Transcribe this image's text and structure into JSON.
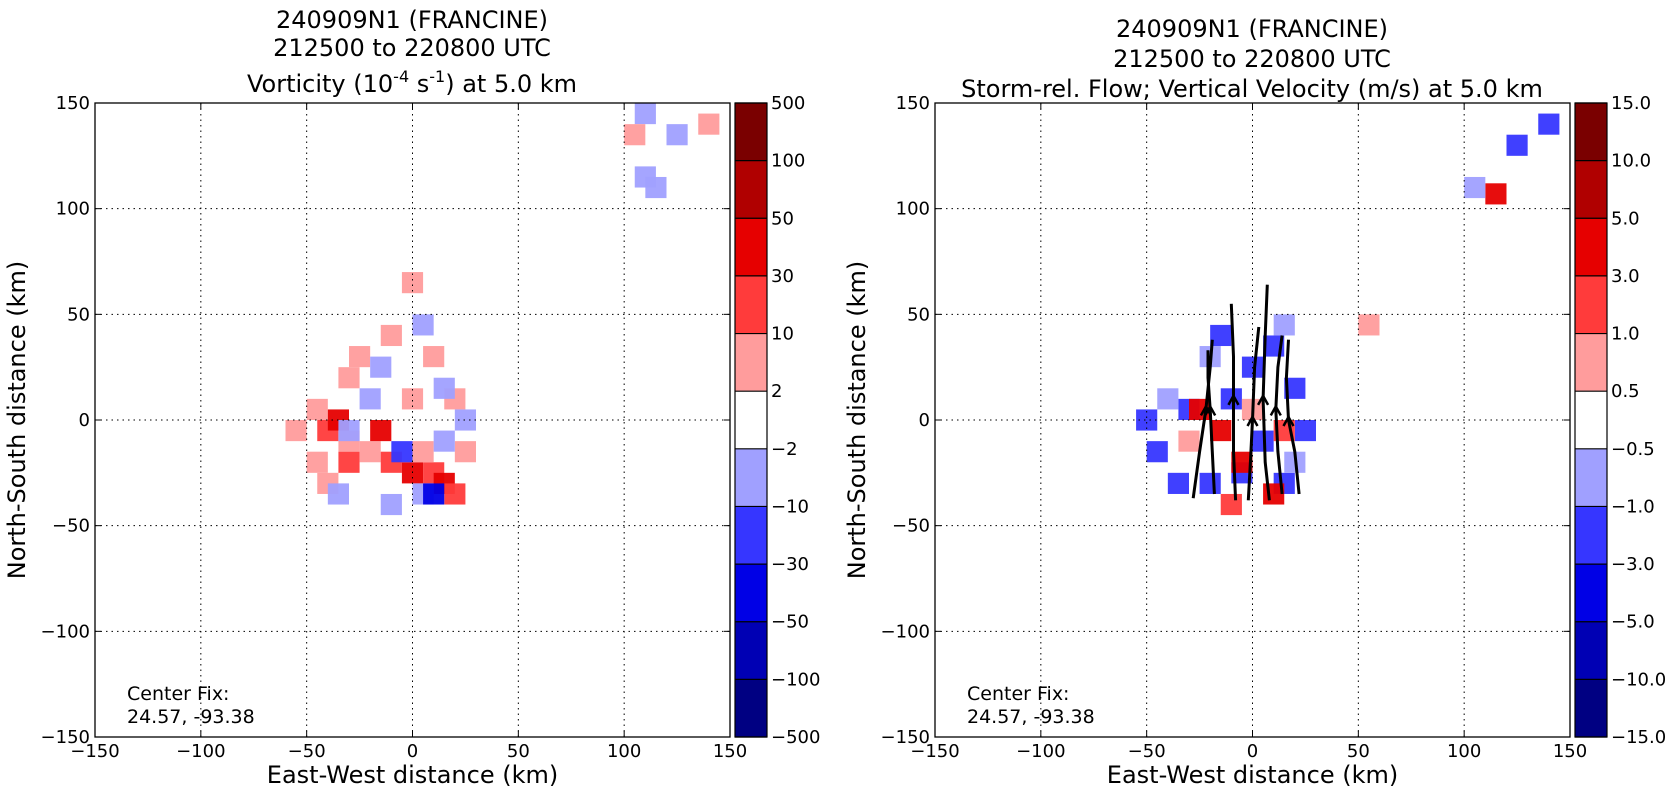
{
  "chart_data": [
    {
      "type": "heatmap",
      "title_lines": [
        "240909N1 (FRANCINE)",
        "212500 to 220800 UTC"
      ],
      "title_line3": {
        "prefix": "Vorticity (10",
        "exp1": "-4",
        "mid": " s",
        "exp2": "-1",
        "suffix": ") at 5.0 km"
      },
      "xlabel": "East-West distance (km)",
      "ylabel": "North-South distance (km)",
      "xlim": [
        -150,
        150
      ],
      "ylim": [
        -150,
        150
      ],
      "xticks": [
        -150,
        -100,
        -50,
        0,
        50,
        100,
        150
      ],
      "yticks": [
        -150,
        -100,
        -50,
        0,
        50,
        100,
        150
      ],
      "xtick_labels": [
        "−150",
        "−100",
        "−50",
        "0",
        "50",
        "100",
        "150"
      ],
      "ytick_labels": [
        "−150",
        "−100",
        "−50",
        "0",
        "50",
        "100",
        "150"
      ],
      "grid": true,
      "annotation": [
        "Center Fix:",
        "24.57, -93.38"
      ],
      "colorbar": {
        "levels": [
          "500",
          "100",
          "50",
          "30",
          "10",
          "2",
          "−2",
          "−10",
          "−30",
          "−50",
          "−100",
          "−500"
        ],
        "colors": [
          "#7a0000",
          "#b00000",
          "#e60000",
          "#ff3b3b",
          "#ff9c9c",
          "#ffffff",
          "#a0a0ff",
          "#3636ff",
          "#0000e6",
          "#0000b4",
          "#000082"
        ]
      },
      "cells": [
        {
          "x": -55,
          "y": -5,
          "c": 4
        },
        {
          "x": -45,
          "y": 5,
          "c": 4
        },
        {
          "x": -40,
          "y": -5,
          "c": 3
        },
        {
          "x": -35,
          "y": 0,
          "c": 2
        },
        {
          "x": -30,
          "y": -10,
          "c": 4
        },
        {
          "x": -45,
          "y": -20,
          "c": 4
        },
        {
          "x": -40,
          "y": -30,
          "c": 4
        },
        {
          "x": -30,
          "y": -20,
          "c": 3
        },
        {
          "x": -20,
          "y": -15,
          "c": 4
        },
        {
          "x": -15,
          "y": -5,
          "c": 2
        },
        {
          "x": -10,
          "y": -20,
          "c": 3
        },
        {
          "x": 0,
          "y": -25,
          "c": 2
        },
        {
          "x": 10,
          "y": -25,
          "c": 3
        },
        {
          "x": 15,
          "y": -30,
          "c": 2
        },
        {
          "x": 20,
          "y": -35,
          "c": 3
        },
        {
          "x": 5,
          "y": -15,
          "c": 4
        },
        {
          "x": -25,
          "y": 30,
          "c": 4
        },
        {
          "x": -10,
          "y": 40,
          "c": 4
        },
        {
          "x": 10,
          "y": 30,
          "c": 4
        },
        {
          "x": 20,
          "y": 10,
          "c": 4
        },
        {
          "x": -30,
          "y": 20,
          "c": 4
        },
        {
          "x": 0,
          "y": 10,
          "c": 4
        },
        {
          "x": 25,
          "y": -15,
          "c": 4
        },
        {
          "x": 0,
          "y": 65,
          "c": 4
        },
        {
          "x": -20,
          "y": 10,
          "c": 6
        },
        {
          "x": 5,
          "y": 45,
          "c": 6
        },
        {
          "x": -5,
          "y": -15,
          "c": 7
        },
        {
          "x": -30,
          "y": -5,
          "c": 6
        },
        {
          "x": 15,
          "y": 15,
          "c": 6
        },
        {
          "x": 25,
          "y": 0,
          "c": 6
        },
        {
          "x": -15,
          "y": 25,
          "c": 6
        },
        {
          "x": -35,
          "y": -35,
          "c": 6
        },
        {
          "x": 5,
          "y": -35,
          "c": 6
        },
        {
          "x": 10,
          "y": -35,
          "c": 8
        },
        {
          "x": -10,
          "y": -40,
          "c": 6
        },
        {
          "x": 15,
          "y": -10,
          "c": 6
        },
        {
          "x": 110,
          "y": 145,
          "c": 6
        },
        {
          "x": 125,
          "y": 135,
          "c": 6
        },
        {
          "x": 140,
          "y": 140,
          "c": 4
        },
        {
          "x": 105,
          "y": 135,
          "c": 4
        },
        {
          "x": 110,
          "y": 115,
          "c": 6
        },
        {
          "x": 115,
          "y": 110,
          "c": 6
        }
      ]
    },
    {
      "type": "heatmap",
      "title_lines": [
        "240909N1 (FRANCINE)",
        "212500 to 220800 UTC",
        "Storm-rel. Flow; Vertical Velocity (m/s) at 5.0 km"
      ],
      "xlabel": "East-West distance (km)",
      "ylabel": "North-South distance (km)",
      "xlim": [
        -150,
        150
      ],
      "ylim": [
        -150,
        150
      ],
      "xticks": [
        -150,
        -100,
        -50,
        0,
        50,
        100,
        150
      ],
      "yticks": [
        -150,
        -100,
        -50,
        0,
        50,
        100,
        150
      ],
      "xtick_labels": [
        "−150",
        "−100",
        "−50",
        "0",
        "50",
        "100",
        "150"
      ],
      "ytick_labels": [
        "−150",
        "−100",
        "−50",
        "0",
        "50",
        "100",
        "150"
      ],
      "grid": true,
      "annotation": [
        "Center Fix:",
        "24.57, -93.38"
      ],
      "colorbar": {
        "levels": [
          "15.0",
          "10.0",
          "5.0",
          "3.0",
          "1.0",
          "0.5",
          "−0.5",
          "−1.0",
          "−3.0",
          "−5.0",
          "−10.0",
          "−15.0"
        ],
        "colors": [
          "#7a0000",
          "#b00000",
          "#e60000",
          "#ff3b3b",
          "#ff9c9c",
          "#ffffff",
          "#a0a0ff",
          "#3636ff",
          "#0000e6",
          "#0000b4",
          "#000082"
        ]
      },
      "cells": [
        {
          "x": -50,
          "y": 0,
          "c": 7
        },
        {
          "x": -45,
          "y": -15,
          "c": 7
        },
        {
          "x": -30,
          "y": 5,
          "c": 7
        },
        {
          "x": -35,
          "y": -30,
          "c": 7
        },
        {
          "x": -20,
          "y": -30,
          "c": 7
        },
        {
          "x": 15,
          "y": -30,
          "c": 7
        },
        {
          "x": 20,
          "y": 15,
          "c": 7
        },
        {
          "x": 10,
          "y": 35,
          "c": 7
        },
        {
          "x": -15,
          "y": 40,
          "c": 7
        },
        {
          "x": 0,
          "y": 25,
          "c": 7
        },
        {
          "x": -10,
          "y": 10,
          "c": 7
        },
        {
          "x": 5,
          "y": -10,
          "c": 7
        },
        {
          "x": 25,
          "y": -5,
          "c": 7
        },
        {
          "x": -5,
          "y": -25,
          "c": 7
        },
        {
          "x": -20,
          "y": 30,
          "c": 6
        },
        {
          "x": 15,
          "y": 45,
          "c": 6
        },
        {
          "x": -40,
          "y": 10,
          "c": 6
        },
        {
          "x": 20,
          "y": -20,
          "c": 6
        },
        {
          "x": -25,
          "y": 5,
          "c": 2
        },
        {
          "x": -15,
          "y": -5,
          "c": 2
        },
        {
          "x": -5,
          "y": -20,
          "c": 2
        },
        {
          "x": 10,
          "y": -35,
          "c": 2
        },
        {
          "x": -10,
          "y": -40,
          "c": 3
        },
        {
          "x": 15,
          "y": -5,
          "c": 3
        },
        {
          "x": 0,
          "y": 5,
          "c": 4
        },
        {
          "x": -30,
          "y": -10,
          "c": 4
        },
        {
          "x": 55,
          "y": 45,
          "c": 4
        },
        {
          "x": 125,
          "y": 130,
          "c": 7
        },
        {
          "x": 140,
          "y": 140,
          "c": 7
        },
        {
          "x": 115,
          "y": 107,
          "c": 2
        },
        {
          "x": 105,
          "y": 110,
          "c": 6
        }
      ],
      "streamlines": [
        [
          [
            -28,
            -37
          ],
          [
            -25,
            -15
          ],
          [
            -22,
            5
          ],
          [
            -20,
            25
          ],
          [
            -19,
            38
          ]
        ],
        [
          [
            -18,
            -35
          ],
          [
            -19,
            -15
          ],
          [
            -20,
            5
          ],
          [
            -21,
            20
          ],
          [
            -21,
            33
          ]
        ],
        [
          [
            -8,
            -38
          ],
          [
            -9,
            -15
          ],
          [
            -9,
            10
          ],
          [
            -9,
            30
          ],
          [
            -10,
            55
          ]
        ],
        [
          [
            -2,
            -38
          ],
          [
            -1,
            -20
          ],
          [
            0,
            0
          ],
          [
            1,
            25
          ],
          [
            3,
            44
          ]
        ],
        [
          [
            8,
            -38
          ],
          [
            6,
            -20
          ],
          [
            5,
            10
          ],
          [
            6,
            40
          ],
          [
            7,
            64
          ]
        ],
        [
          [
            14,
            -35
          ],
          [
            12,
            -15
          ],
          [
            11,
            5
          ],
          [
            12,
            25
          ],
          [
            14,
            40
          ]
        ],
        [
          [
            22,
            -35
          ],
          [
            20,
            -15
          ],
          [
            17,
            0
          ],
          [
            16,
            20
          ],
          [
            17,
            38
          ]
        ]
      ]
    }
  ]
}
